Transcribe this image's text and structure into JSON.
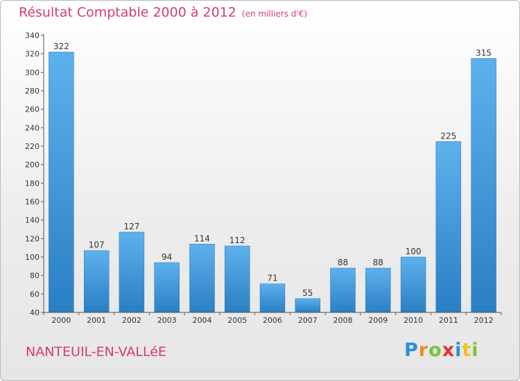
{
  "chart_data": {
    "type": "bar",
    "title": "Résultat Comptable 2000 à 2012",
    "subtitle": "(en milliers d'€)",
    "xlabel": "",
    "ylabel": "",
    "categories": [
      "2000",
      "2001",
      "2002",
      "2003",
      "2004",
      "2005",
      "2006",
      "2007",
      "2008",
      "2009",
      "2010",
      "2011",
      "2012"
    ],
    "values": [
      322,
      107,
      127,
      94,
      114,
      112,
      71,
      55,
      88,
      88,
      100,
      225,
      315
    ],
    "data_labels": [
      "322",
      "107",
      "127",
      "94",
      "114",
      "112",
      "71",
      "55",
      "88",
      "88",
      "100",
      "225",
      "315"
    ],
    "ylim": [
      40,
      340
    ],
    "yticks": [
      "40",
      "60",
      "80",
      "100",
      "120",
      "140",
      "160",
      "180",
      "200",
      "220",
      "240",
      "260",
      "280",
      "300",
      "320",
      "340"
    ],
    "grid": false,
    "legend": "none",
    "bar_color": "#3a95d8"
  },
  "footer": {
    "commune": "NANTEUIL-EN-VALLéE",
    "brand_letters": [
      {
        "char": "P",
        "color": "#2b8fd8"
      },
      {
        "char": "r",
        "color": "#f08b1e"
      },
      {
        "char": "o",
        "color": "#7cc13a"
      },
      {
        "char": "x",
        "color": "#e8312f"
      },
      {
        "char": "i",
        "color": "#2b8fd8"
      },
      {
        "char": "t",
        "color": "#f0c419"
      },
      {
        "char": "i",
        "color": "#7cc13a"
      }
    ]
  },
  "colors": {
    "title": "#d33c7a",
    "axis": "#555555",
    "text": "#333333"
  }
}
